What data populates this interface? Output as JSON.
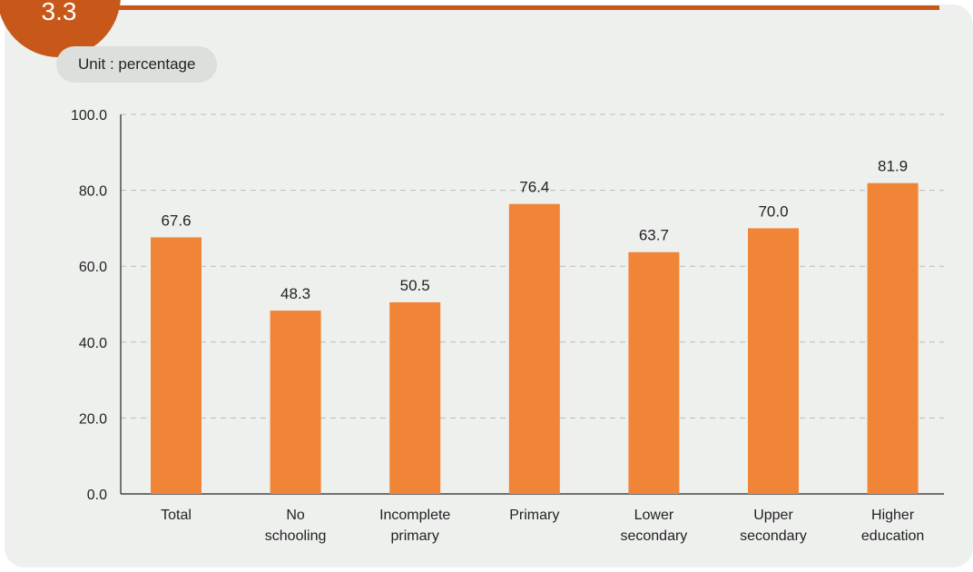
{
  "figure": {
    "badge_text": "3.3"
  },
  "unit_label": "Unit : percentage",
  "colors": {
    "bar": "#f08537",
    "accent": "#c8581a",
    "panel": "#eef0ee"
  },
  "chart_data": {
    "type": "bar",
    "categories": [
      [
        "Total"
      ],
      [
        "No",
        "schooling"
      ],
      [
        "Incomplete",
        "primary"
      ],
      [
        "Primary"
      ],
      [
        "Lower",
        "secondary"
      ],
      [
        "Upper",
        "secondary"
      ],
      [
        "Higher",
        "education"
      ]
    ],
    "values": [
      67.6,
      48.3,
      50.5,
      76.4,
      63.7,
      70.0,
      81.9
    ],
    "value_labels": [
      "67.6",
      "48.3",
      "50.5",
      "76.4",
      "63.7",
      "70.0",
      "81.9"
    ],
    "ylim": [
      0,
      100
    ],
    "yticks": [
      "0.0",
      "20.0",
      "40.0",
      "60.0",
      "80.0",
      "100.0"
    ],
    "grid": true
  }
}
